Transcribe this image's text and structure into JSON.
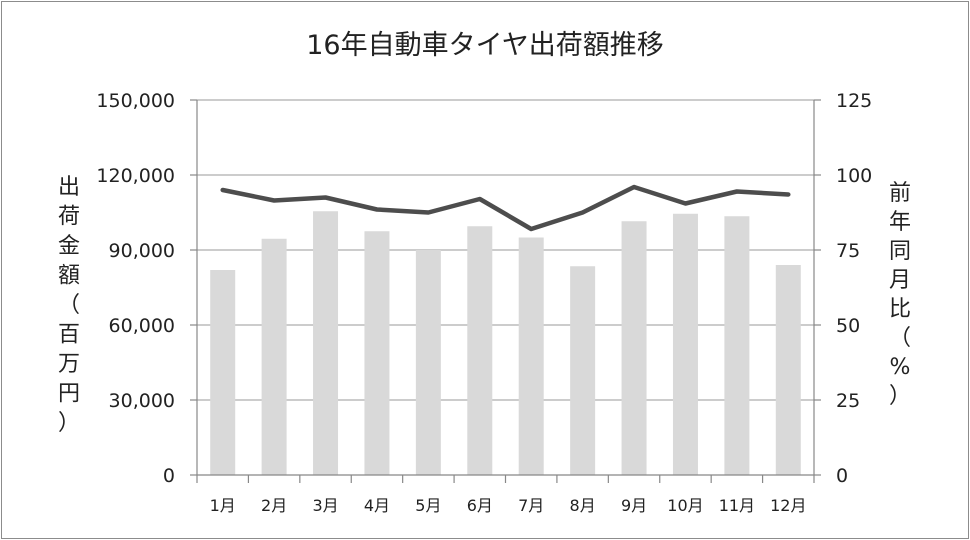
{
  "chart_data": {
    "type": "bar+line",
    "title": "16年自動車タイヤ出荷額推移",
    "categories": [
      "1月",
      "2月",
      "3月",
      "4月",
      "5月",
      "6月",
      "7月",
      "8月",
      "9月",
      "10月",
      "11月",
      "12月"
    ],
    "series": [
      {
        "type": "bar",
        "axis": "left",
        "color": "#d9d9d9",
        "values": [
          82000,
          94500,
          105500,
          97500,
          90000,
          99500,
          95000,
          83500,
          101500,
          104500,
          103500,
          84000
        ]
      },
      {
        "type": "line",
        "axis": "right",
        "color": "#4d4d4d",
        "values": [
          95,
          91.5,
          92.5,
          88.5,
          87.5,
          92,
          82,
          87.5,
          96,
          90.5,
          94.5,
          93.5
        ]
      }
    ],
    "ylabel_left": "出荷金額（百万円）",
    "ylabel_right": "前年同月比（%）",
    "yticks_left": [
      "0",
      "30,000",
      "60,000",
      "90,000",
      "120,000",
      "150,000"
    ],
    "yticks_right": [
      "0",
      "25",
      "50",
      "75",
      "100",
      "125"
    ],
    "ylim_left": [
      0,
      150000
    ],
    "ylim_right": [
      0,
      125
    ],
    "grid": "horizontal",
    "legend": "none"
  }
}
